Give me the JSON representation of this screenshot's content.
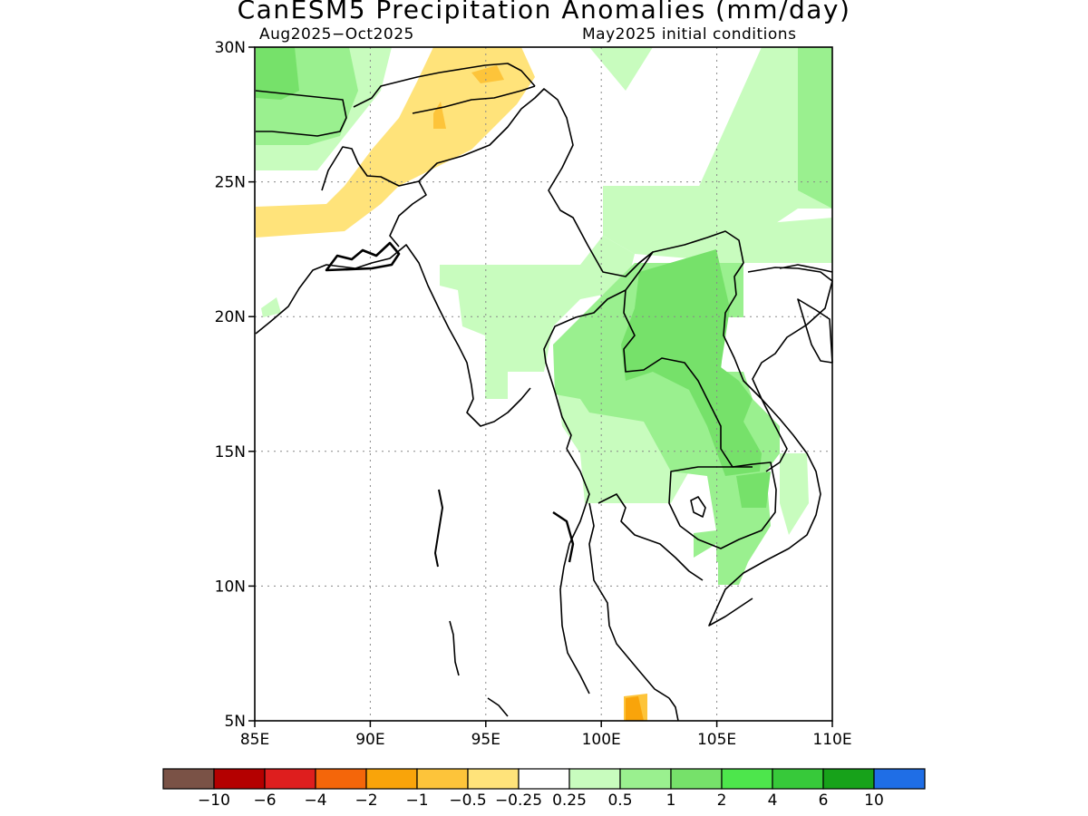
{
  "title": "CanESM5 Precipitation Anomalies (mm/day)",
  "subtitle_left": "Aug2025−Oct2025",
  "subtitle_right": "May2025 initial conditions",
  "map": {
    "lon_range": [
      85,
      110
    ],
    "lat_range": [
      5,
      30
    ],
    "x_ticks": [
      {
        "value": 85,
        "label": "85E"
      },
      {
        "value": 90,
        "label": "90E"
      },
      {
        "value": 95,
        "label": "95E"
      },
      {
        "value": 100,
        "label": "100E"
      },
      {
        "value": 105,
        "label": "105E"
      },
      {
        "value": 110,
        "label": "110E"
      }
    ],
    "y_ticks": [
      {
        "value": 30,
        "label": "30N"
      },
      {
        "value": 25,
        "label": "25N"
      },
      {
        "value": 20,
        "label": "20N"
      },
      {
        "value": 15,
        "label": "15N"
      },
      {
        "value": 10,
        "label": "10N"
      },
      {
        "value": 5,
        "label": "5N"
      }
    ],
    "grid": true
  },
  "colorbar": {
    "colors": [
      "#7a5246",
      "#b40000",
      "#de1e1e",
      "#f4660a",
      "#f9a40a",
      "#fdc43a",
      "#ffe37a",
      "#ffffff",
      "#c8fcbe",
      "#9af08f",
      "#76e16a",
      "#4de64c",
      "#37c93a",
      "#17a21a",
      "#1f6ee6"
    ],
    "labels": [
      "−10",
      "−6",
      "−4",
      "−2",
      "−1",
      "−0.5",
      "−0.25",
      "0.25",
      "0.5",
      "1",
      "2",
      "4",
      "6",
      "10"
    ]
  }
}
